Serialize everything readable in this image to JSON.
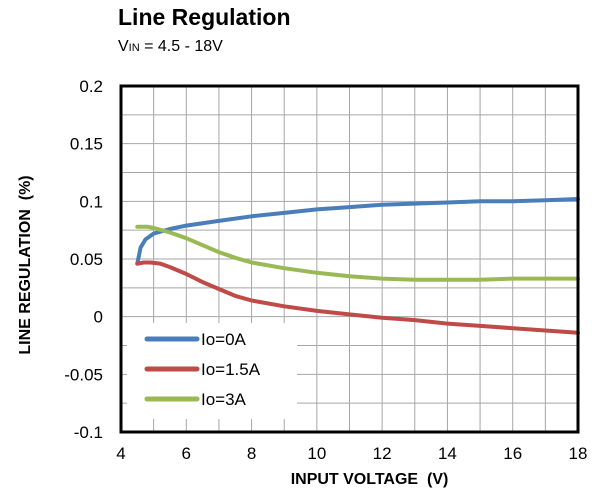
{
  "title": "Line Regulation",
  "subtitle": {
    "prefix": "V",
    "subscript": "IN",
    "rest": " = 4.5 - 18V"
  },
  "chart_data": {
    "type": "line",
    "title": "Line Regulation",
    "subtitle": "VIN = 4.5 - 18V",
    "xlabel": "INPUT VOLTAGE  (V)",
    "ylabel": "LINE REGULATION  (%)",
    "xlim": [
      4,
      18
    ],
    "ylim": [
      -0.1,
      0.2
    ],
    "x_ticks": [
      4,
      6,
      8,
      10,
      12,
      14,
      16,
      18
    ],
    "y_ticks": [
      -0.1,
      -0.05,
      0,
      0.05,
      0.1,
      0.15,
      0.2
    ],
    "y_tick_labels": [
      "-0.1",
      "-0.05",
      "0",
      "0.05",
      "0.1",
      "0.15",
      "0.2"
    ],
    "grid": true,
    "legend_position": "bottom-left",
    "series": [
      {
        "name": "Io=0A",
        "color": "#4a7ebb",
        "points": [
          [
            4.5,
            0.046
          ],
          [
            4.6,
            0.06
          ],
          [
            4.75,
            0.067
          ],
          [
            5,
            0.072
          ],
          [
            5.5,
            0.076
          ],
          [
            6,
            0.079
          ],
          [
            7,
            0.083
          ],
          [
            8,
            0.087
          ],
          [
            9,
            0.09
          ],
          [
            10,
            0.093
          ],
          [
            11,
            0.095
          ],
          [
            12,
            0.097
          ],
          [
            13,
            0.098
          ],
          [
            14,
            0.099
          ],
          [
            15,
            0.1
          ],
          [
            16,
            0.1
          ],
          [
            17,
            0.101
          ],
          [
            18,
            0.102
          ]
        ]
      },
      {
        "name": "Io=1.5A",
        "color": "#be4b48",
        "points": [
          [
            4.5,
            0.046
          ],
          [
            4.7,
            0.047
          ],
          [
            4.9,
            0.047
          ],
          [
            5.2,
            0.046
          ],
          [
            5.5,
            0.043
          ],
          [
            6,
            0.037
          ],
          [
            6.5,
            0.03
          ],
          [
            7,
            0.024
          ],
          [
            7.5,
            0.018
          ],
          [
            8,
            0.014
          ],
          [
            9,
            0.009
          ],
          [
            10,
            0.005
          ],
          [
            11,
            0.002
          ],
          [
            12,
            -0.001
          ],
          [
            13,
            -0.003
          ],
          [
            14,
            -0.006
          ],
          [
            15,
            -0.008
          ],
          [
            16,
            -0.01
          ],
          [
            17,
            -0.012
          ],
          [
            18,
            -0.014
          ]
        ]
      },
      {
        "name": "Io=3A",
        "color": "#98b954",
        "points": [
          [
            4.5,
            0.078
          ],
          [
            4.8,
            0.078
          ],
          [
            5,
            0.077
          ],
          [
            5.5,
            0.073
          ],
          [
            6,
            0.068
          ],
          [
            6.5,
            0.062
          ],
          [
            7,
            0.056
          ],
          [
            7.5,
            0.051
          ],
          [
            8,
            0.047
          ],
          [
            9,
            0.042
          ],
          [
            10,
            0.038
          ],
          [
            11,
            0.035
          ],
          [
            12,
            0.033
          ],
          [
            13,
            0.032
          ],
          [
            14,
            0.032
          ],
          [
            15,
            0.032
          ],
          [
            16,
            0.033
          ],
          [
            17,
            0.033
          ],
          [
            18,
            0.033
          ]
        ]
      }
    ]
  }
}
